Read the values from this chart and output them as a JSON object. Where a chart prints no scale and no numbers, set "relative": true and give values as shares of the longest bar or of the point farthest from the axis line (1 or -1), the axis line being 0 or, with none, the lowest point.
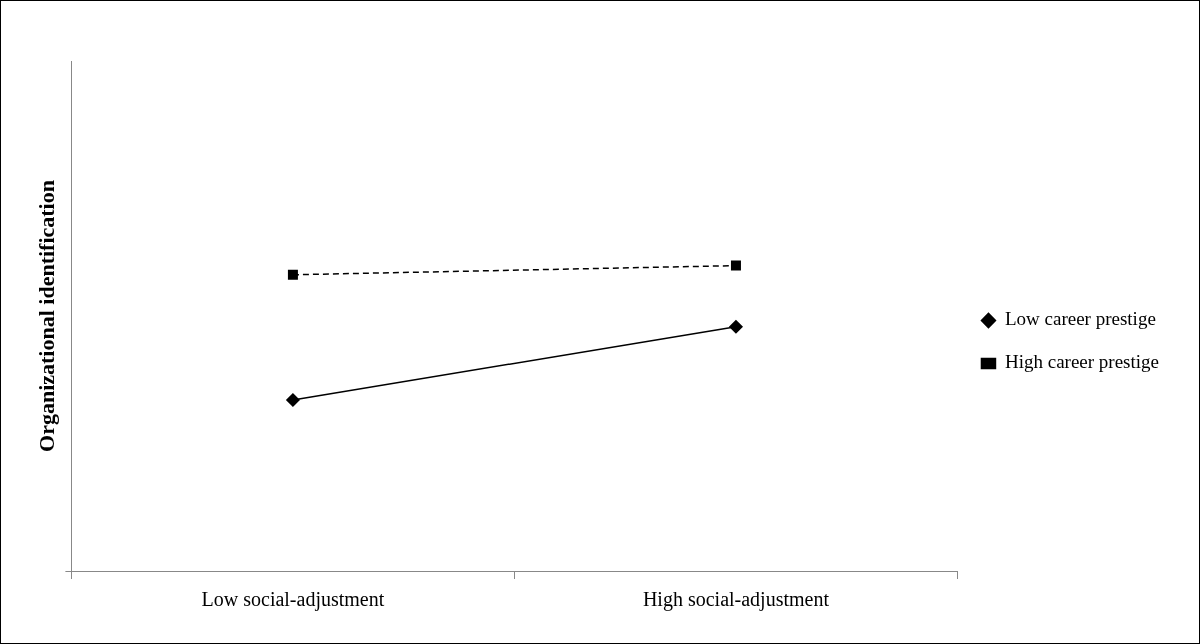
{
  "chart_data": {
    "type": "line",
    "ylabel": "Organizational identification",
    "categories": [
      "Low social-adjustment",
      "High social-adjustment"
    ],
    "relative": true,
    "legend": "right",
    "grid": false,
    "series": [
      {
        "name": "Low career prestige",
        "color": "#000000",
        "values": [
          0.56,
          0.8
        ],
        "marker": "diamond",
        "line_style": "solid"
      },
      {
        "name": "High career prestige",
        "color": "#000000",
        "values": [
          0.97,
          1
        ],
        "marker": "square",
        "line_style": "dashed"
      }
    ]
  }
}
